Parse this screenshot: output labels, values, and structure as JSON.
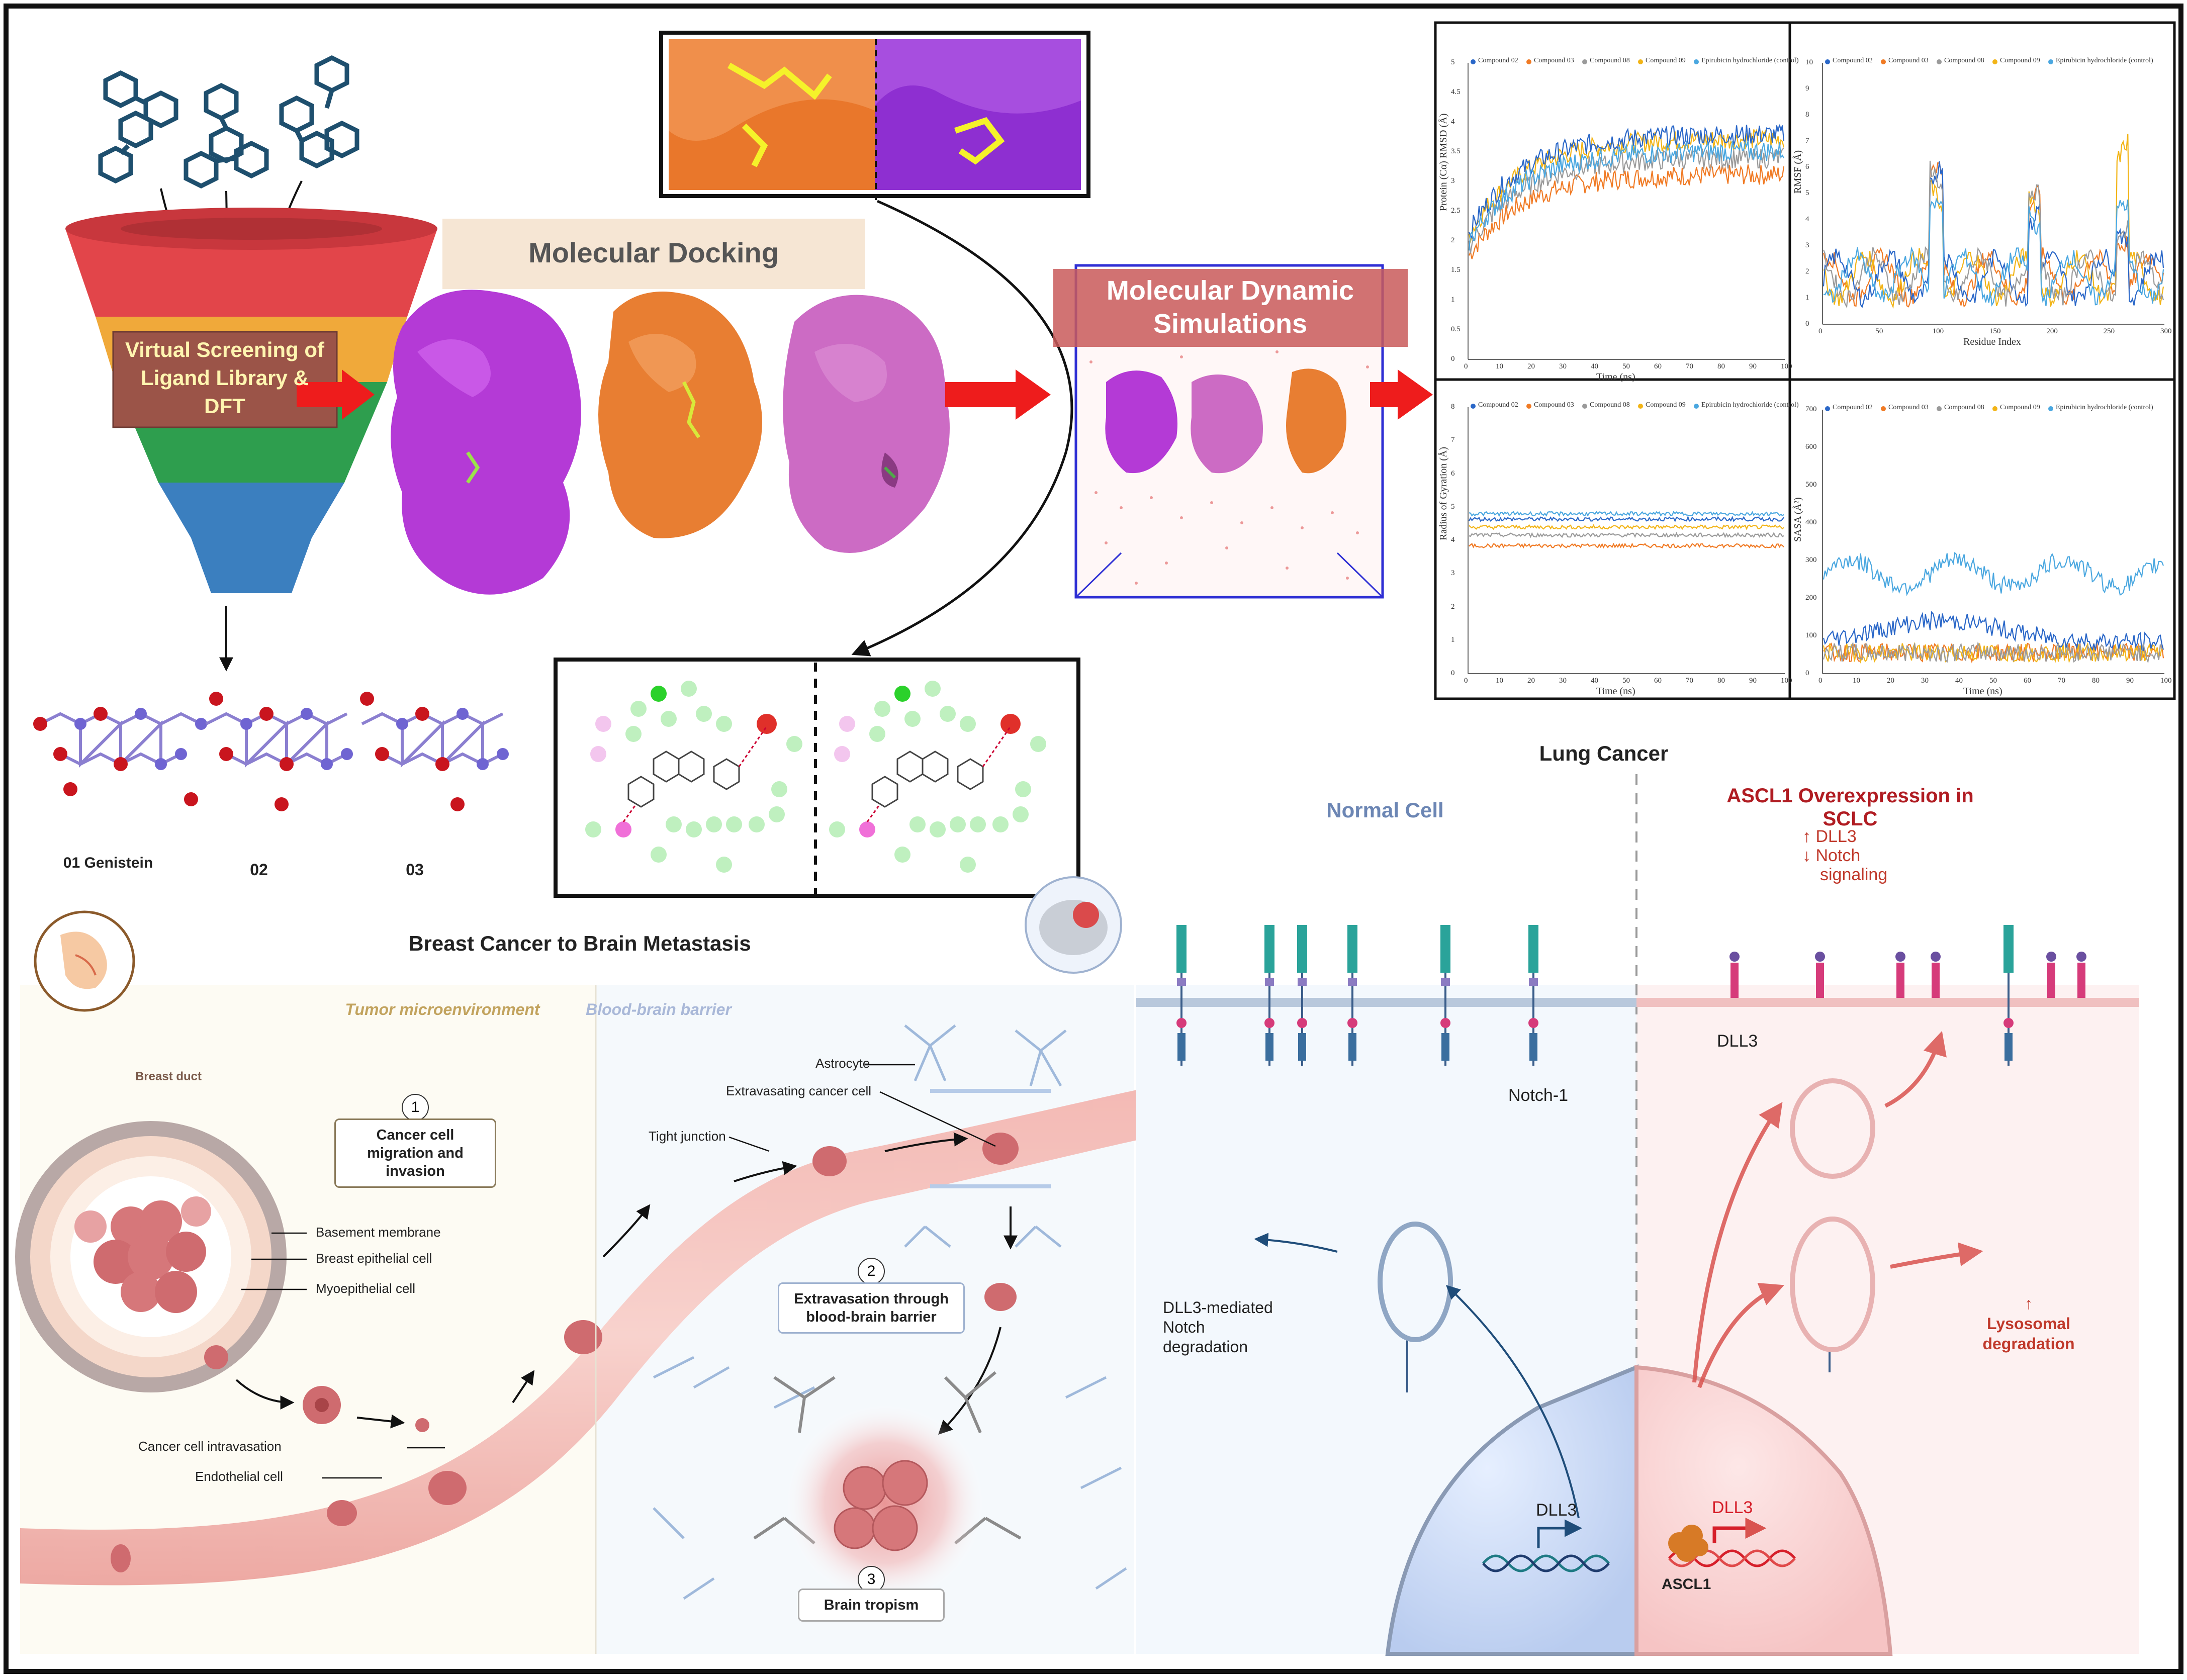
{
  "pipeline": {
    "funnel_label": "Virtual Screening of Ligand Library  & DFT",
    "docking_title": "Molecular Docking",
    "md_title": "Molecular Dynamic Simulations",
    "compounds": [
      "01 Genistein",
      "02",
      "03"
    ]
  },
  "md_plots": {
    "legend": [
      "Compound 02",
      "Compound 03",
      "Compound 08",
      "Compound 09",
      "Epirubicin hydrochloride (control)"
    ],
    "series_colors": [
      "#2a67c8",
      "#f07a24",
      "#9a9a9a",
      "#f2b416",
      "#4aa7e0"
    ],
    "rmsd": {
      "ylabel": "Protein (Cα) RMSD (Å)",
      "xlabel": "Time (ns)",
      "yticks": [
        "0",
        "0.5",
        "1",
        "1.5",
        "2",
        "2.5",
        "3",
        "3.5",
        "4",
        "4.5",
        "5"
      ],
      "xticks": [
        "0",
        "10",
        "20",
        "30",
        "40",
        "50",
        "60",
        "70",
        "80",
        "90",
        "100"
      ]
    },
    "rmsf": {
      "ylabel": "RMSF (Å)",
      "xlabel": "Residue Index",
      "yticks": [
        "0",
        "1",
        "2",
        "3",
        "4",
        "5",
        "6",
        "7",
        "8",
        "9",
        "10"
      ],
      "xticks": [
        "0",
        "50",
        "100",
        "150",
        "200",
        "250",
        "300"
      ]
    },
    "rg": {
      "ylabel": "Radius of Gyration (Å)",
      "xlabel": "Time (ns)",
      "yticks": [
        "0",
        "1",
        "2",
        "3",
        "4",
        "5",
        "6",
        "7",
        "8"
      ],
      "xticks": [
        "0",
        "10",
        "20",
        "30",
        "40",
        "50",
        "60",
        "70",
        "80",
        "90",
        "100"
      ]
    },
    "sasa": {
      "ylabel": "SASA (Å²)",
      "xlabel": "Time (ns)",
      "yticks": [
        "0",
        "100",
        "200",
        "300",
        "400",
        "500",
        "600",
        "700"
      ],
      "xticks": [
        "0",
        "10",
        "20",
        "30",
        "40",
        "50",
        "60",
        "70",
        "80",
        "90",
        "100"
      ]
    }
  },
  "breast": {
    "title": "Breast Cancer to Brain Metastasis",
    "tme_label": "Tumor microenvironment",
    "bbb_label": "Blood-brain barrier",
    "breast_duct": "Breast duct",
    "step1": "Cancer cell migration and invasion",
    "step2": "Extravasation through blood-brain barrier",
    "step3": "Brain tropism",
    "basement_membrane": "Basement membrane",
    "breast_epithelial": "Breast epithelial cell",
    "myoepithelial": "Myoepithelial cell",
    "intravasation": "Cancer cell intravasation",
    "endothelial": "Endothelial cell",
    "tight_junction": "Tight junction",
    "astrocyte": "Astrocyte",
    "extravasating": "Extravasating cancer cell"
  },
  "lung": {
    "title": "Lung Cancer",
    "normal_title": "Normal Cell",
    "ascl1_title": "ASCL1 Overexpression in SCLC",
    "ascl1_effects": [
      "↑ DLL3",
      "↓ Notch",
      "signaling"
    ],
    "dll3": "DLL3",
    "notch1": "Notch-1",
    "dll3_notch_deg": [
      "DLL3-mediated",
      "Notch",
      "degradation"
    ],
    "lysosomal": [
      "↑",
      "Lysosomal",
      "degradation"
    ],
    "gene_normal": "DLL3",
    "gene_sclc": "DLL3",
    "ascl1": "ASCL1"
  },
  "colors": {
    "arrow_red": "#ee1c1c",
    "teal": "#2aa39a",
    "magenta": "#d63b7a",
    "normal_title": "#6c86b4",
    "sclc_title": "#b01c22"
  }
}
